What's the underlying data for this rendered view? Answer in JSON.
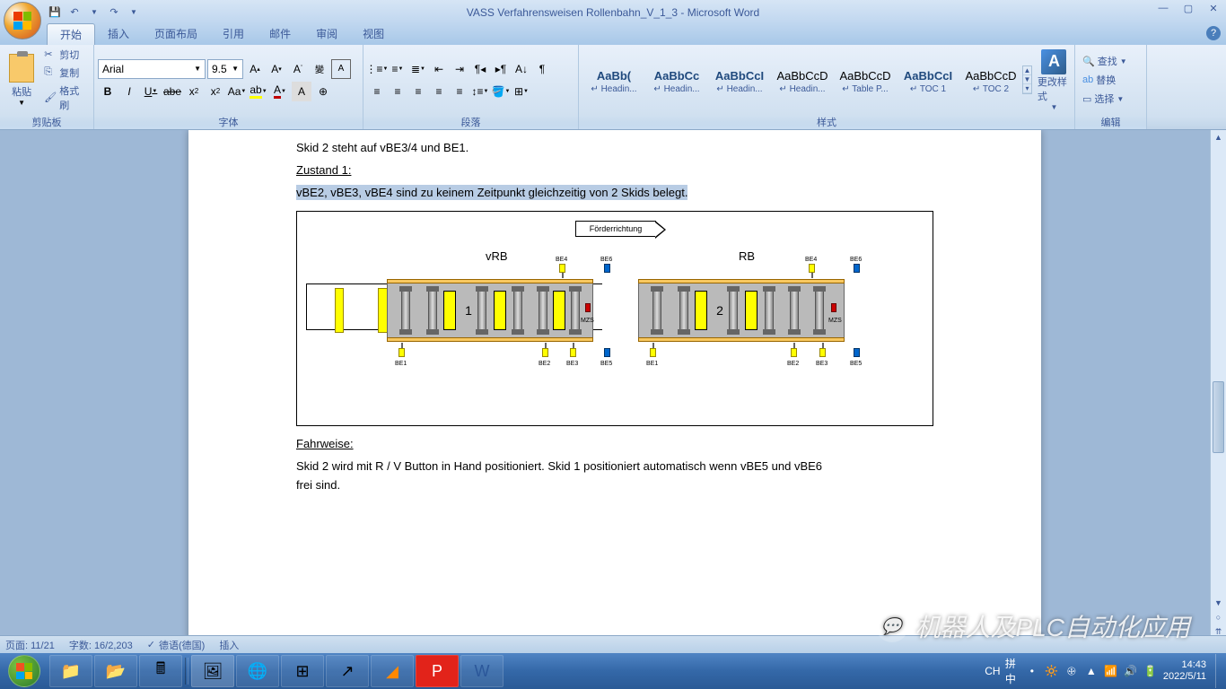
{
  "window": {
    "title": "VASS Verfahrensweisen Rollenbahn_V_1_3 - Microsoft Word",
    "qat": {
      "save": "💾",
      "undo": "↶",
      "redo": "↷"
    },
    "controls": {
      "min": "—",
      "max": "▢",
      "close": "✕"
    }
  },
  "tabs": {
    "items": [
      "开始",
      "插入",
      "页面布局",
      "引用",
      "邮件",
      "审阅",
      "视图"
    ],
    "active_index": 0,
    "help": "?"
  },
  "ribbon": {
    "clipboard": {
      "label": "剪贴板",
      "paste": "粘贴",
      "cut": "剪切",
      "copy": "复制",
      "format_painter": "格式刷"
    },
    "font": {
      "label": "字体",
      "name": "Arial",
      "size": "9.5",
      "buttons_row1": [
        "A",
        "A",
        "Aˇ",
        "變",
        "A"
      ],
      "buttons_row2": [
        "B",
        "I",
        "U",
        "abe",
        "x₂",
        "x²",
        "Aa",
        "ab",
        "A",
        "A",
        "A"
      ]
    },
    "paragraph": {
      "label": "段落"
    },
    "styles": {
      "label": "样式",
      "change": "更改样式",
      "items": [
        {
          "preview": "AaBb(",
          "name": "↵ Headin...",
          "bold": true
        },
        {
          "preview": "AaBbCc",
          "name": "↵ Headin...",
          "bold": true
        },
        {
          "preview": "AaBbCcI",
          "name": "↵ Headin...",
          "bold": true
        },
        {
          "preview": "AaBbCcD",
          "name": "↵ Headin...",
          "bold": false
        },
        {
          "preview": "AaBbCcD",
          "name": "↵ Table P...",
          "bold": false
        },
        {
          "preview": "AaBbCcI",
          "name": "↵ TOC 1",
          "bold": true
        },
        {
          "preview": "AaBbCcD",
          "name": "↵ TOC 2",
          "bold": false
        }
      ]
    },
    "editing": {
      "label": "编辑",
      "find": "查找",
      "replace": "替换",
      "select": "选择"
    }
  },
  "document": {
    "line1": "Skid 2 steht  auf vBE3/4 und  BE1.",
    "zustand": "Zustand 1:",
    "highlighted": "vBE2, vBE3, vBE4 sind zu keinem Zeitpunkt  gleichzeitig  von 2 Skids belegt.",
    "fahrweise": "Fahrweise:",
    "fahrweise_text": "Skid 2 wird mit R / V Button in Hand positioniert.  Skid 1 positioniert  automatisch wenn vBE5 und vBE6 frei sind.",
    "flow_label": "Förderrichtung",
    "vrb_label": "vRB",
    "rb_label": "RB",
    "sensors": {
      "be1": "BE1",
      "be2": "BE2",
      "be3": "BE3",
      "be4": "BE4",
      "be5": "BE5",
      "be6": "BE6",
      "mzs": "MZS"
    }
  },
  "statusbar": {
    "page": "页面: 11/21",
    "words": "字数: 16/2,203",
    "language": "德语(德国)",
    "mode": "插入"
  },
  "taskbar": {
    "time": "14:43",
    "date": "2022/5/11",
    "ime": "CH",
    "ime2": "拼中"
  },
  "watermark": "机器人及PLC自动化应用",
  "colors": {
    "highlight_yellow": "#ffff00",
    "font_red": "#c00000",
    "accent": "#3b5998"
  }
}
